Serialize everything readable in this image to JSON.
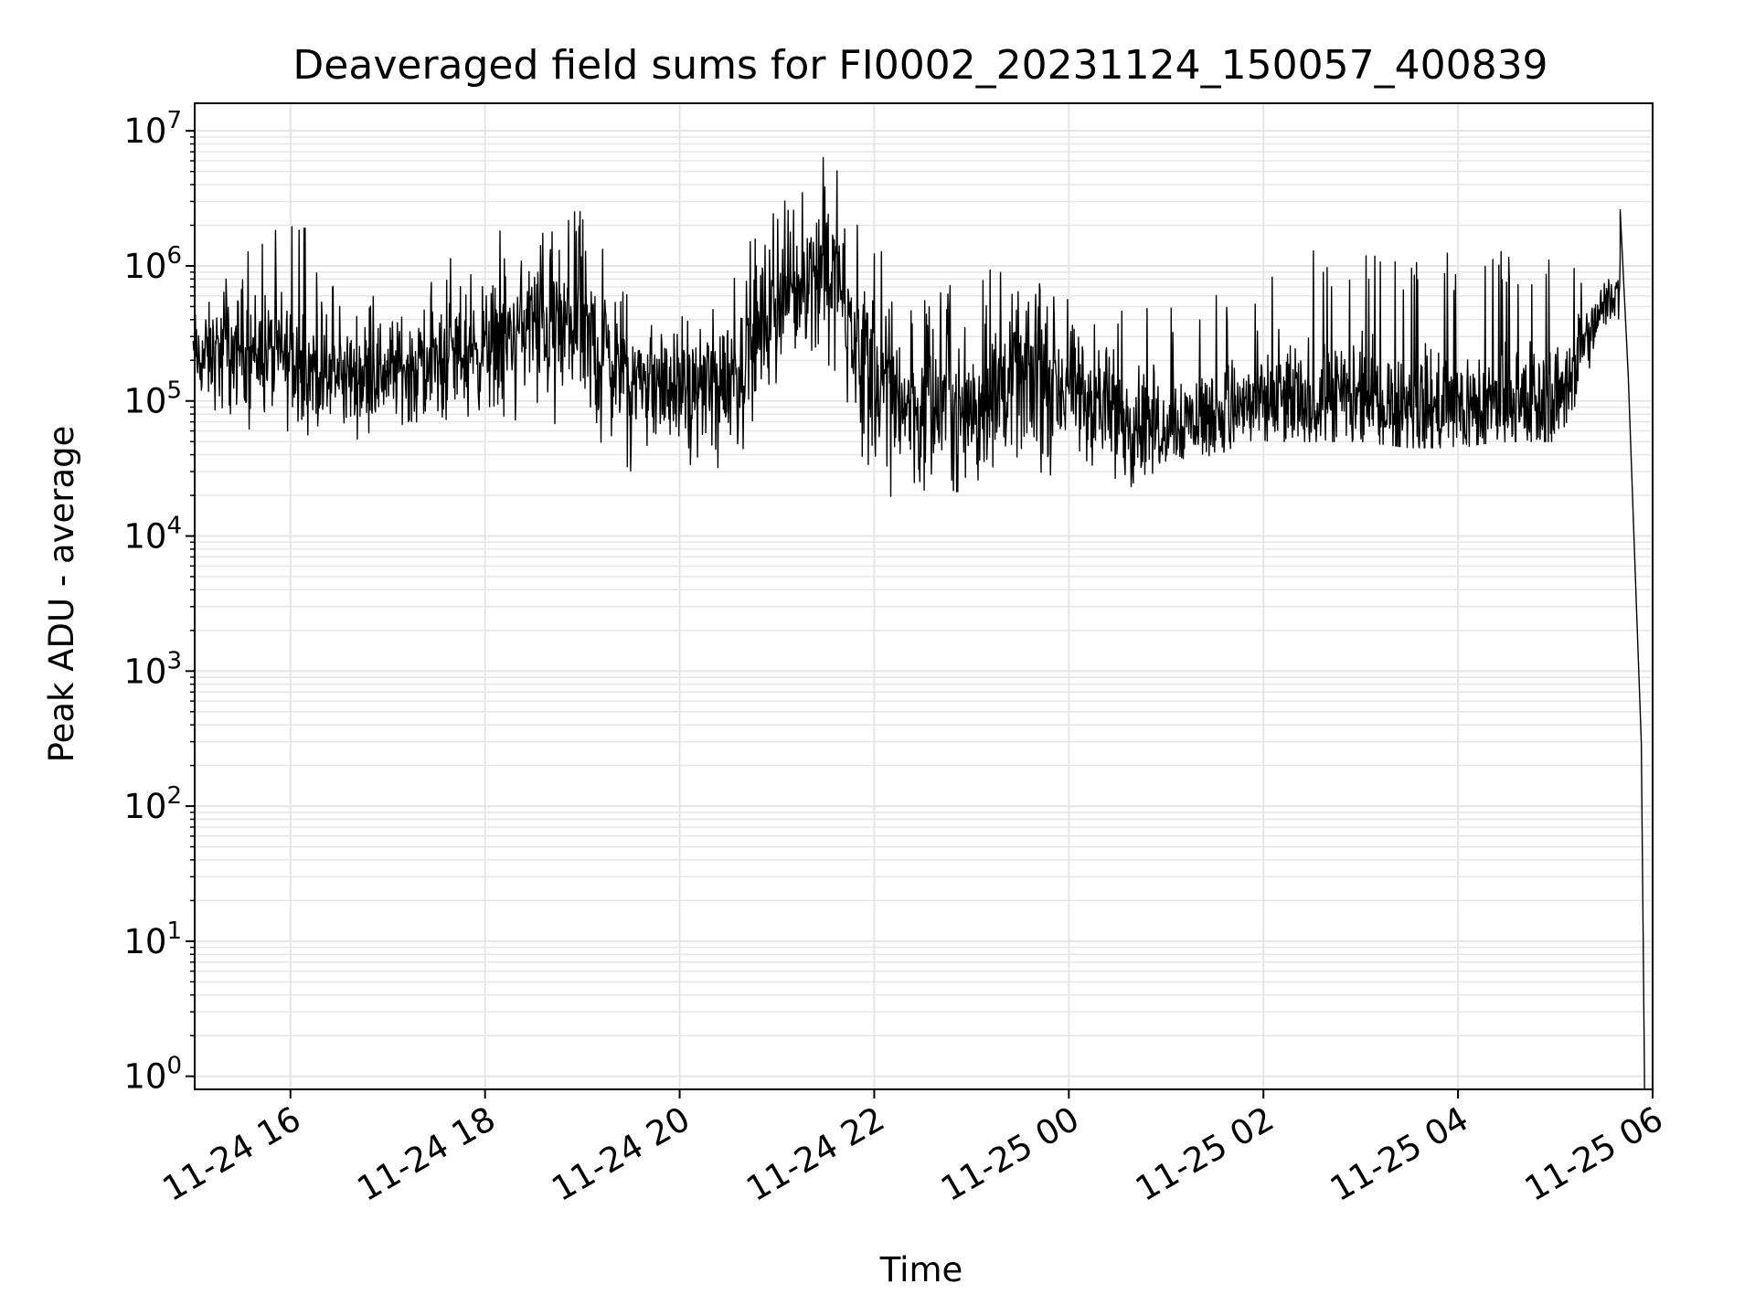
{
  "chart_data": {
    "type": "line",
    "title": "Deaveraged field sums for FI0002_20231124_150057_400839",
    "xlabel": "Time",
    "ylabel": "Peak ADU - average",
    "yscale": "log",
    "ylim": [
      0.8,
      16000000
    ],
    "xlim": [
      "2023-11-24 15:00:57",
      "2023-11-25 06:00:00"
    ],
    "x_ticks": [
      "11-24 16",
      "11-24 18",
      "11-24 20",
      "11-24 22",
      "11-25 00",
      "11-25 02",
      "11-25 04",
      "11-25 06"
    ],
    "x_tick_times": [
      "2023-11-24 16:00",
      "2023-11-24 18:00",
      "2023-11-24 20:00",
      "2023-11-24 22:00",
      "2023-11-25 00:00",
      "2023-11-25 02:00",
      "2023-11-25 04:00",
      "2023-11-25 06:00"
    ],
    "y_ticks": [
      {
        "base": "10",
        "exp": "0",
        "value": 1
      },
      {
        "base": "10",
        "exp": "1",
        "value": 10
      },
      {
        "base": "10",
        "exp": "2",
        "value": 100
      },
      {
        "base": "10",
        "exp": "3",
        "value": 1000
      },
      {
        "base": "10",
        "exp": "4",
        "value": 10000
      },
      {
        "base": "10",
        "exp": "5",
        "value": 100000
      },
      {
        "base": "10",
        "exp": "6",
        "value": 1000000
      },
      {
        "base": "10",
        "exp": "7",
        "value": 10000000
      }
    ],
    "grid": true,
    "legend": "none",
    "line_color": "#000000",
    "grid_color": "#e5e5e5",
    "series": [
      {
        "values": [
          {
            "x": "2023-11-24 15:00",
            "low": 80000,
            "mid": 200000,
            "high": 1000000
          },
          {
            "x": "2023-11-24 15:30",
            "low": 60000,
            "mid": 250000,
            "high": 1400000
          },
          {
            "x": "2023-11-24 16:00",
            "low": 60000,
            "mid": 200000,
            "high": 2800000
          },
          {
            "x": "2023-11-24 16:30",
            "low": 50000,
            "mid": 150000,
            "high": 900000
          },
          {
            "x": "2023-11-24 17:00",
            "low": 50000,
            "mid": 170000,
            "high": 800000
          },
          {
            "x": "2023-11-24 17:30",
            "low": 50000,
            "mid": 200000,
            "high": 1100000
          },
          {
            "x": "2023-11-24 18:00",
            "low": 60000,
            "mid": 250000,
            "high": 1500000
          },
          {
            "x": "2023-11-24 18:30",
            "low": 80000,
            "mid": 400000,
            "high": 3200000
          },
          {
            "x": "2023-11-24 19:00",
            "low": 30000,
            "mid": 300000,
            "high": 3000000
          },
          {
            "x": "2023-11-24 19:30",
            "low": 30000,
            "mid": 150000,
            "high": 1000000
          },
          {
            "x": "2023-11-24 20:00",
            "low": 30000,
            "mid": 120000,
            "high": 500000
          },
          {
            "x": "2023-11-24 20:30",
            "low": 30000,
            "mid": 150000,
            "high": 900000
          },
          {
            "x": "2023-11-24 21:00",
            "low": 80000,
            "mid": 500000,
            "high": 3000000
          },
          {
            "x": "2023-11-24 21:30",
            "low": 200000,
            "mid": 1200000,
            "high": 7800000
          },
          {
            "x": "2023-11-24 22:00",
            "low": 20000,
            "mid": 150000,
            "high": 1500000
          },
          {
            "x": "2023-11-24 22:30",
            "low": 18000,
            "mid": 80000,
            "high": 600000
          },
          {
            "x": "2023-11-24 23:00",
            "low": 18000,
            "mid": 100000,
            "high": 900000
          },
          {
            "x": "2023-11-24 23:30",
            "low": 20000,
            "mid": 150000,
            "high": 1200000
          },
          {
            "x": "2023-11-25 00:00",
            "low": 20000,
            "mid": 120000,
            "high": 600000
          },
          {
            "x": "2023-11-25 00:30",
            "low": 18000,
            "mid": 80000,
            "high": 500000
          },
          {
            "x": "2023-11-25 01:00",
            "low": 35000,
            "mid": 70000,
            "high": 550000
          },
          {
            "x": "2023-11-25 01:30",
            "low": 40000,
            "mid": 80000,
            "high": 600000
          },
          {
            "x": "2023-11-25 02:00",
            "low": 50000,
            "mid": 100000,
            "high": 1100000
          },
          {
            "x": "2023-11-25 02:30",
            "low": 50000,
            "mid": 100000,
            "high": 1300000
          },
          {
            "x": "2023-11-25 03:00",
            "low": 50000,
            "mid": 100000,
            "high": 1300000
          },
          {
            "x": "2023-11-25 03:30",
            "low": 45000,
            "mid": 90000,
            "high": 1300000
          },
          {
            "x": "2023-11-25 04:00",
            "low": 45000,
            "mid": 90000,
            "high": 1300000
          },
          {
            "x": "2023-11-25 04:30",
            "low": 50000,
            "mid": 90000,
            "high": 1300000
          },
          {
            "x": "2023-11-25 05:00",
            "low": 50000,
            "mid": 100000,
            "high": 1400000
          },
          {
            "x": "2023-11-25 05:30",
            "low": 200000,
            "mid": 500000,
            "high": 1000000
          },
          {
            "x": "2023-11-25 05:40",
            "low": 400000,
            "mid": 700000,
            "high": 2600000
          },
          {
            "x": "2023-11-25 05:45",
            "low": 150000,
            "mid": 150000,
            "high": 150000
          },
          {
            "x": "2023-11-25 05:50",
            "low": 3000,
            "mid": 3000,
            "high": 3000
          },
          {
            "x": "2023-11-25 05:53",
            "low": 300,
            "mid": 300,
            "high": 300
          },
          {
            "x": "2023-11-25 05:55",
            "low": 1,
            "mid": 1,
            "high": 1
          }
        ]
      }
    ]
  }
}
